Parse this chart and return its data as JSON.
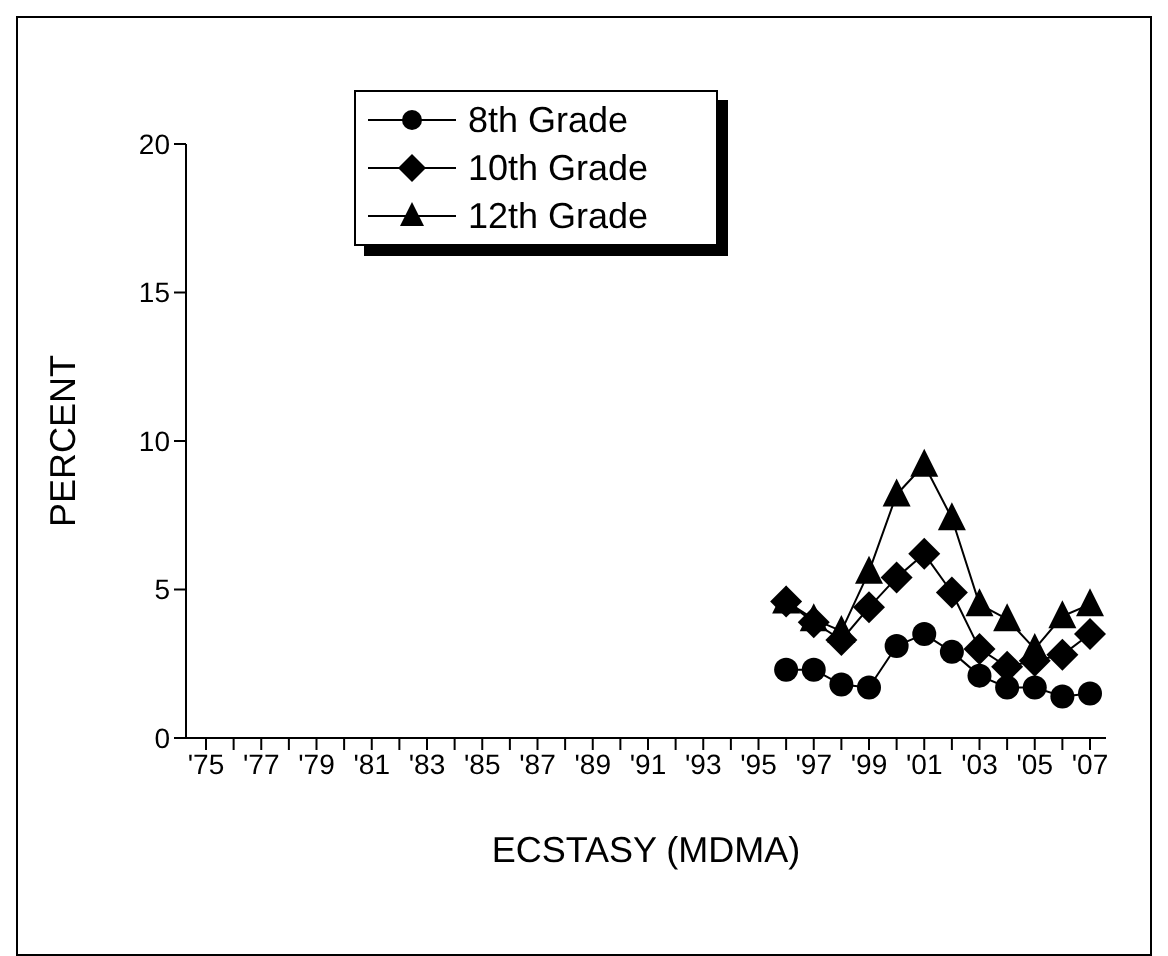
{
  "chart_data": {
    "type": "line",
    "xlabel": "ECSTASY (MDMA)",
    "ylabel": "PERCENT",
    "categories": [
      "'75",
      null,
      "'77",
      null,
      "'79",
      null,
      "'81",
      null,
      "'83",
      null,
      "'85",
      null,
      "'87",
      null,
      "'89",
      null,
      "'91",
      null,
      "'93",
      null,
      "'95",
      null,
      "'97",
      null,
      "'99",
      null,
      "'01",
      null,
      "'03",
      null,
      "'05",
      null,
      "'07"
    ],
    "series": [
      {
        "name": "8th Grade",
        "color": "#000000",
        "marker": "circle",
        "values": [
          null,
          null,
          null,
          null,
          null,
          null,
          null,
          null,
          null,
          null,
          null,
          null,
          null,
          null,
          null,
          null,
          null,
          null,
          null,
          null,
          null,
          2.3,
          2.3,
          1.8,
          1.7,
          3.1,
          3.5,
          2.9,
          2.1,
          1.7,
          1.7,
          1.4,
          1.5
        ]
      },
      {
        "name": "10th Grade",
        "color": "#000000",
        "marker": "diamond",
        "values": [
          null,
          null,
          null,
          null,
          null,
          null,
          null,
          null,
          null,
          null,
          null,
          null,
          null,
          null,
          null,
          null,
          null,
          null,
          null,
          null,
          null,
          4.6,
          3.9,
          3.3,
          4.4,
          5.4,
          6.2,
          4.9,
          3.0,
          2.4,
          2.6,
          2.8,
          3.5
        ]
      },
      {
        "name": "12th Grade",
        "color": "#000000",
        "marker": "triangle",
        "values": [
          null,
          null,
          null,
          null,
          null,
          null,
          null,
          null,
          null,
          null,
          null,
          null,
          null,
          null,
          null,
          null,
          null,
          null,
          null,
          null,
          null,
          4.6,
          4.0,
          3.6,
          5.6,
          8.2,
          9.2,
          7.4,
          4.5,
          4.0,
          3.0,
          4.1,
          4.5
        ]
      }
    ],
    "ylim": [
      0,
      20
    ],
    "yticks": [
      0,
      5,
      10,
      15,
      20
    ],
    "grid": false,
    "legend": "top",
    "line_style": "solid"
  }
}
